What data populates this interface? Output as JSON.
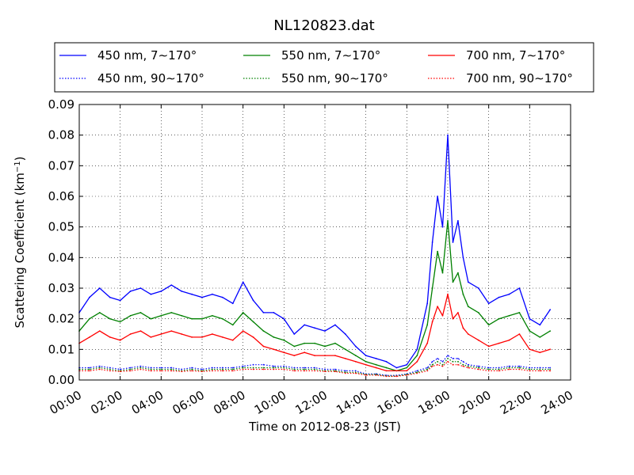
{
  "chart_data": {
    "type": "line",
    "title": "NL120823.dat",
    "xlabel": "Time on 2012-08-23 (JST)",
    "ylabel_main": "Scattering Coefficient (km",
    "ylabel_sup": "−1",
    "ylabel_tail": ")",
    "xlim": [
      0,
      24
    ],
    "ylim": [
      0,
      0.09
    ],
    "x_ticks": [
      0,
      2,
      4,
      6,
      8,
      10,
      12,
      14,
      16,
      18,
      20,
      22,
      24
    ],
    "x_tick_labels": [
      "00:00",
      "02:00",
      "04:00",
      "06:00",
      "08:00",
      "10:00",
      "12:00",
      "14:00",
      "16:00",
      "18:00",
      "20:00",
      "22:00",
      "24:00"
    ],
    "y_ticks": [
      0,
      0.01,
      0.02,
      0.03,
      0.04,
      0.05,
      0.06,
      0.07,
      0.08,
      0.09
    ],
    "y_tick_labels": [
      "0.00",
      "0.01",
      "0.02",
      "0.03",
      "0.04",
      "0.05",
      "0.06",
      "0.07",
      "0.08",
      "0.09"
    ],
    "grid": true,
    "legend_placement": "top, above plot, 3 columns",
    "x": [
      0,
      0.5,
      1,
      1.5,
      2,
      2.5,
      3,
      3.5,
      4,
      4.5,
      5,
      5.5,
      6,
      6.5,
      7,
      7.5,
      8,
      8.5,
      9,
      9.5,
      10,
      10.5,
      11,
      11.5,
      12,
      12.5,
      13,
      13.5,
      14,
      14.5,
      15,
      15.5,
      16,
      16.5,
      17,
      17.25,
      17.5,
      17.75,
      18,
      18.25,
      18.5,
      18.75,
      19,
      19.5,
      20,
      20.5,
      21,
      21.5,
      22,
      22.5,
      23
    ],
    "series": [
      {
        "name": "450 nm, 7∼170°",
        "color": "#0000ff",
        "style": "solid",
        "values": [
          0.022,
          0.027,
          0.03,
          0.027,
          0.026,
          0.029,
          0.03,
          0.028,
          0.029,
          0.031,
          0.029,
          0.028,
          0.027,
          0.028,
          0.027,
          0.025,
          0.032,
          0.026,
          0.022,
          0.022,
          0.02,
          0.015,
          0.018,
          0.017,
          0.016,
          0.018,
          0.015,
          0.011,
          0.008,
          0.007,
          0.006,
          0.004,
          0.005,
          0.01,
          0.025,
          0.045,
          0.06,
          0.05,
          0.08,
          0.045,
          0.052,
          0.04,
          0.032,
          0.03,
          0.025,
          0.027,
          0.028,
          0.03,
          0.02,
          0.018,
          0.023
        ]
      },
      {
        "name": "450 nm, 90∼170°",
        "color": "#0000ff",
        "style": "dotted",
        "values": [
          0.004,
          0.004,
          0.0045,
          0.004,
          0.0035,
          0.004,
          0.0045,
          0.004,
          0.004,
          0.004,
          0.0035,
          0.004,
          0.0035,
          0.004,
          0.004,
          0.004,
          0.0045,
          0.005,
          0.005,
          0.0045,
          0.0045,
          0.004,
          0.004,
          0.004,
          0.0035,
          0.0035,
          0.003,
          0.003,
          0.002,
          0.002,
          0.0015,
          0.0015,
          0.002,
          0.003,
          0.004,
          0.006,
          0.007,
          0.006,
          0.008,
          0.007,
          0.007,
          0.006,
          0.005,
          0.0045,
          0.004,
          0.004,
          0.0045,
          0.0045,
          0.004,
          0.004,
          0.004
        ]
      },
      {
        "name": "550 nm, 7∼170°",
        "color": "#008000",
        "style": "solid",
        "values": [
          0.016,
          0.02,
          0.022,
          0.02,
          0.019,
          0.021,
          0.022,
          0.02,
          0.021,
          0.022,
          0.021,
          0.02,
          0.02,
          0.021,
          0.02,
          0.018,
          0.022,
          0.019,
          0.016,
          0.014,
          0.013,
          0.011,
          0.012,
          0.012,
          0.011,
          0.012,
          0.01,
          0.008,
          0.006,
          0.005,
          0.004,
          0.003,
          0.004,
          0.008,
          0.018,
          0.03,
          0.042,
          0.035,
          0.052,
          0.032,
          0.035,
          0.028,
          0.024,
          0.022,
          0.018,
          0.02,
          0.021,
          0.022,
          0.016,
          0.014,
          0.016
        ]
      },
      {
        "name": "550 nm, 90∼170°",
        "color": "#008000",
        "style": "dotted",
        "values": [
          0.0035,
          0.0035,
          0.004,
          0.0035,
          0.003,
          0.0035,
          0.004,
          0.0035,
          0.0035,
          0.0035,
          0.003,
          0.0035,
          0.003,
          0.0035,
          0.0035,
          0.0035,
          0.004,
          0.004,
          0.004,
          0.004,
          0.004,
          0.0035,
          0.0035,
          0.0035,
          0.003,
          0.003,
          0.0025,
          0.0025,
          0.0018,
          0.0018,
          0.0013,
          0.0013,
          0.0018,
          0.0025,
          0.0035,
          0.005,
          0.006,
          0.005,
          0.007,
          0.006,
          0.006,
          0.005,
          0.0045,
          0.004,
          0.0035,
          0.0035,
          0.004,
          0.004,
          0.0035,
          0.0035,
          0.0035
        ]
      },
      {
        "name": "700 nm, 7∼170°",
        "color": "#ff0000",
        "style": "solid",
        "values": [
          0.012,
          0.014,
          0.016,
          0.014,
          0.013,
          0.015,
          0.016,
          0.014,
          0.015,
          0.016,
          0.015,
          0.014,
          0.014,
          0.015,
          0.014,
          0.013,
          0.016,
          0.014,
          0.011,
          0.01,
          0.009,
          0.008,
          0.009,
          0.008,
          0.008,
          0.008,
          0.007,
          0.006,
          0.005,
          0.004,
          0.003,
          0.003,
          0.003,
          0.006,
          0.012,
          0.019,
          0.024,
          0.021,
          0.028,
          0.02,
          0.022,
          0.017,
          0.015,
          0.013,
          0.011,
          0.012,
          0.013,
          0.015,
          0.01,
          0.009,
          0.01
        ]
      },
      {
        "name": "700 nm, 90∼170°",
        "color": "#ff0000",
        "style": "dotted",
        "values": [
          0.003,
          0.003,
          0.0035,
          0.003,
          0.0028,
          0.003,
          0.0035,
          0.003,
          0.003,
          0.003,
          0.0028,
          0.003,
          0.0028,
          0.003,
          0.003,
          0.003,
          0.0035,
          0.0035,
          0.0035,
          0.0035,
          0.0035,
          0.003,
          0.003,
          0.003,
          0.0028,
          0.0028,
          0.0022,
          0.0022,
          0.0016,
          0.0016,
          0.0012,
          0.0012,
          0.0016,
          0.0022,
          0.003,
          0.0045,
          0.005,
          0.0045,
          0.006,
          0.005,
          0.005,
          0.0045,
          0.004,
          0.0035,
          0.003,
          0.003,
          0.0035,
          0.0035,
          0.003,
          0.003,
          0.003
        ]
      }
    ]
  }
}
